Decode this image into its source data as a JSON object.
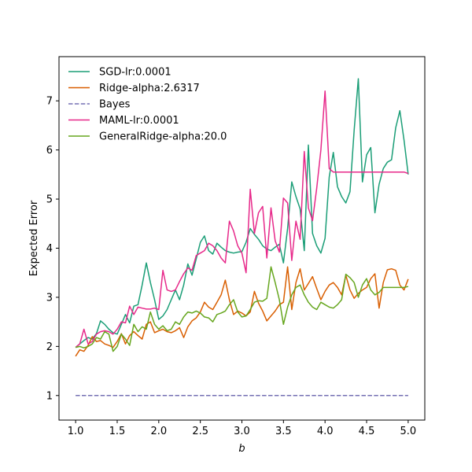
{
  "chart_data": {
    "type": "line",
    "xlabel": "b",
    "ylabel": "Expected Error",
    "xlim": [
      0.8,
      5.2
    ],
    "ylim": [
      0.5,
      7.9
    ],
    "xticks": [
      "1.0",
      "1.5",
      "2.0",
      "2.5",
      "3.0",
      "3.5",
      "4.0",
      "4.5",
      "5.0"
    ],
    "yticks": [
      "1",
      "2",
      "3",
      "4",
      "5",
      "6",
      "7"
    ],
    "grid": false,
    "legend_position": "top-left",
    "x": [
      1.0,
      1.05,
      1.1,
      1.15,
      1.2,
      1.25,
      1.3,
      1.35,
      1.4,
      1.45,
      1.5,
      1.55,
      1.6,
      1.65,
      1.7,
      1.75,
      1.8,
      1.85,
      1.9,
      1.95,
      2.0,
      2.05,
      2.1,
      2.15,
      2.2,
      2.25,
      2.3,
      2.35,
      2.4,
      2.45,
      2.5,
      2.55,
      2.6,
      2.65,
      2.7,
      2.75,
      2.8,
      2.85,
      2.9,
      2.95,
      3.0,
      3.05,
      3.1,
      3.15,
      3.2,
      3.25,
      3.3,
      3.35,
      3.4,
      3.45,
      3.5,
      3.55,
      3.6,
      3.65,
      3.7,
      3.75,
      3.8,
      3.85,
      3.9,
      3.95,
      4.0,
      4.05,
      4.1,
      4.15,
      4.2,
      4.25,
      4.3,
      4.35,
      4.4,
      4.45,
      4.5,
      4.55,
      4.6,
      4.65,
      4.7,
      4.75,
      4.8,
      4.85,
      4.9,
      4.95,
      5.0
    ],
    "series": [
      {
        "name": "SGD-lr:0.0001",
        "color": "#1b9e77",
        "dash": "solid",
        "values": [
          1.98,
          2.05,
          2.12,
          2.18,
          2.15,
          2.26,
          2.52,
          2.45,
          2.35,
          2.28,
          2.25,
          2.45,
          2.65,
          2.48,
          2.82,
          2.85,
          3.25,
          3.7,
          3.3,
          2.95,
          2.55,
          2.62,
          2.75,
          2.95,
          3.15,
          2.95,
          3.25,
          3.68,
          3.45,
          3.78,
          4.12,
          4.25,
          3.95,
          3.88,
          4.1,
          4.02,
          3.95,
          3.92,
          3.9,
          3.92,
          3.93,
          4.12,
          4.4,
          4.28,
          4.18,
          4.05,
          3.98,
          3.95,
          4.02,
          4.08,
          3.7,
          4.4,
          5.35,
          5.05,
          4.8,
          3.95,
          6.1,
          4.3,
          4.05,
          3.9,
          4.2,
          5.45,
          5.95,
          5.25,
          5.05,
          4.92,
          5.15,
          6.4,
          7.45,
          5.35,
          5.9,
          6.05,
          4.72,
          5.3,
          5.62,
          5.75,
          5.8,
          6.45,
          6.8,
          6.2,
          5.5
        ]
      },
      {
        "name": "Ridge-alpha:2.6317",
        "color": "#d95f02",
        "dash": "solid",
        "values": [
          1.8,
          1.93,
          1.9,
          2.02,
          2.2,
          2.1,
          2.12,
          2.05,
          2.02,
          1.98,
          2.1,
          2.26,
          2.05,
          2.22,
          2.3,
          2.22,
          2.15,
          2.45,
          2.5,
          2.28,
          2.32,
          2.35,
          2.3,
          2.28,
          2.32,
          2.38,
          2.18,
          2.4,
          2.52,
          2.58,
          2.7,
          2.9,
          2.8,
          2.75,
          2.9,
          3.05,
          3.35,
          2.95,
          2.65,
          2.72,
          2.68,
          2.62,
          2.7,
          3.12,
          2.88,
          2.72,
          2.52,
          2.62,
          2.72,
          2.85,
          2.9,
          3.62,
          2.75,
          3.3,
          3.58,
          3.15,
          3.28,
          3.42,
          3.18,
          2.95,
          3.12,
          3.25,
          3.3,
          3.2,
          3.05,
          3.45,
          3.15,
          2.98,
          3.08,
          3.15,
          3.2,
          3.38,
          3.48,
          2.78,
          3.3,
          3.56,
          3.58,
          3.55,
          3.25,
          3.15,
          3.37
        ]
      },
      {
        "name": "Bayes",
        "color": "#7570b3",
        "dash": "dashed",
        "values": [
          1.0,
          1.0,
          1.0,
          1.0,
          1.0,
          1.0,
          1.0,
          1.0,
          1.0,
          1.0,
          1.0,
          1.0,
          1.0,
          1.0,
          1.0,
          1.0,
          1.0,
          1.0,
          1.0,
          1.0,
          1.0,
          1.0,
          1.0,
          1.0,
          1.0,
          1.0,
          1.0,
          1.0,
          1.0,
          1.0,
          1.0,
          1.0,
          1.0,
          1.0,
          1.0,
          1.0,
          1.0,
          1.0,
          1.0,
          1.0,
          1.0,
          1.0,
          1.0,
          1.0,
          1.0,
          1.0,
          1.0,
          1.0,
          1.0,
          1.0,
          1.0,
          1.0,
          1.0,
          1.0,
          1.0,
          1.0,
          1.0,
          1.0,
          1.0,
          1.0,
          1.0,
          1.0,
          1.0,
          1.0,
          1.0,
          1.0,
          1.0,
          1.0,
          1.0,
          1.0,
          1.0,
          1.0,
          1.0,
          1.0,
          1.0,
          1.0,
          1.0,
          1.0,
          1.0,
          1.0,
          1.0
        ]
      },
      {
        "name": "MAML-lr:0.0001",
        "color": "#e7298a",
        "dash": "solid",
        "values": [
          1.98,
          2.05,
          2.35,
          2.05,
          2.1,
          2.25,
          2.3,
          2.32,
          2.3,
          2.25,
          2.35,
          2.5,
          2.48,
          2.82,
          2.65,
          2.8,
          2.78,
          2.76,
          2.76,
          2.78,
          2.75,
          3.55,
          3.15,
          3.12,
          3.15,
          3.32,
          3.48,
          3.6,
          3.55,
          3.85,
          3.9,
          3.95,
          4.1,
          4.05,
          3.95,
          3.8,
          3.7,
          4.55,
          4.35,
          4.05,
          3.9,
          3.5,
          5.2,
          4.3,
          4.72,
          4.85,
          3.8,
          4.82,
          4.15,
          3.92,
          5.02,
          4.92,
          3.75,
          4.55,
          4.18,
          5.97,
          4.82,
          4.56,
          5.22,
          6.0,
          7.2,
          5.62,
          5.55,
          5.55,
          5.55,
          5.55,
          5.55,
          5.55,
          5.55,
          5.55,
          5.55,
          5.55,
          5.55,
          5.55,
          5.55,
          5.55,
          5.55,
          5.55,
          5.55,
          5.55,
          5.52
        ]
      },
      {
        "name": "GeneralRidge-alpha:20.0",
        "color": "#66a61e",
        "dash": "solid",
        "values": [
          1.98,
          2.0,
          1.97,
          2.0,
          2.05,
          2.18,
          2.15,
          2.3,
          2.25,
          1.9,
          2.0,
          2.25,
          2.15,
          2.02,
          2.45,
          2.3,
          2.4,
          2.35,
          2.7,
          2.45,
          2.35,
          2.42,
          2.32,
          2.35,
          2.5,
          2.45,
          2.6,
          2.7,
          2.68,
          2.72,
          2.68,
          2.6,
          2.58,
          2.5,
          2.65,
          2.68,
          2.72,
          2.85,
          2.95,
          2.7,
          2.6,
          2.62,
          2.75,
          2.9,
          2.93,
          2.92,
          2.98,
          3.62,
          3.3,
          2.95,
          2.45,
          2.8,
          3.05,
          3.2,
          3.25,
          3.05,
          2.9,
          2.8,
          2.75,
          2.9,
          2.85,
          2.8,
          2.78,
          2.85,
          2.95,
          3.47,
          3.4,
          3.3,
          3.0,
          3.25,
          3.38,
          3.15,
          3.05,
          3.1,
          3.2,
          3.2,
          3.2,
          3.2,
          3.2,
          3.2,
          3.22
        ]
      }
    ]
  }
}
